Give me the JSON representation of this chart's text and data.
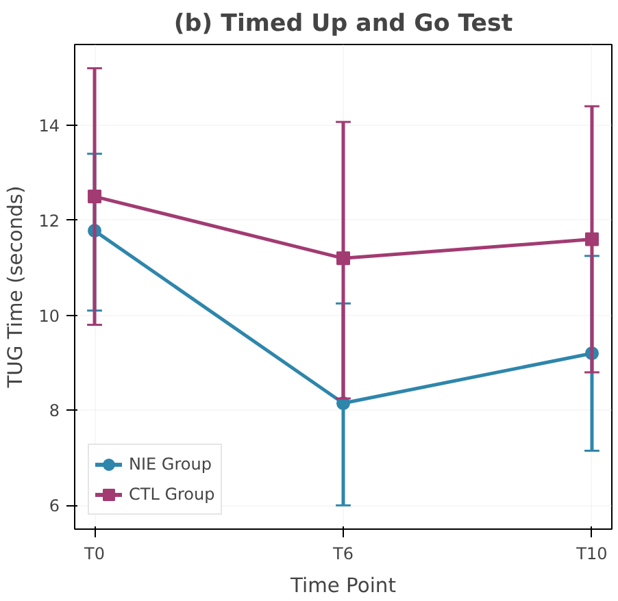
{
  "chart_data": {
    "type": "line",
    "title": "(b) Timed Up and Go Test",
    "xlabel": "Time Point",
    "ylabel": "TUG Time (seconds)",
    "categories": [
      "T0",
      "T6",
      "T10"
    ],
    "series": [
      {
        "name": "NIE Group",
        "color": "#2e86ab",
        "marker": "circle",
        "values": [
          11.78,
          8.15,
          9.2
        ],
        "errors": [
          [
            10.1,
            13.4
          ],
          [
            6.0,
            10.25
          ],
          [
            7.15,
            11.25
          ]
        ]
      },
      {
        "name": "CTL Group",
        "color": "#a23b72",
        "marker": "square",
        "values": [
          12.5,
          11.2,
          11.6
        ],
        "errors": [
          [
            9.8,
            15.2
          ],
          [
            8.25,
            14.07
          ],
          [
            8.8,
            14.4
          ]
        ]
      }
    ],
    "ylim": [
      5.5,
      15.7
    ],
    "yticks": [
      6,
      8,
      10,
      12,
      14
    ],
    "grid": true,
    "legend": "bottom left",
    "line_style": "solid"
  }
}
